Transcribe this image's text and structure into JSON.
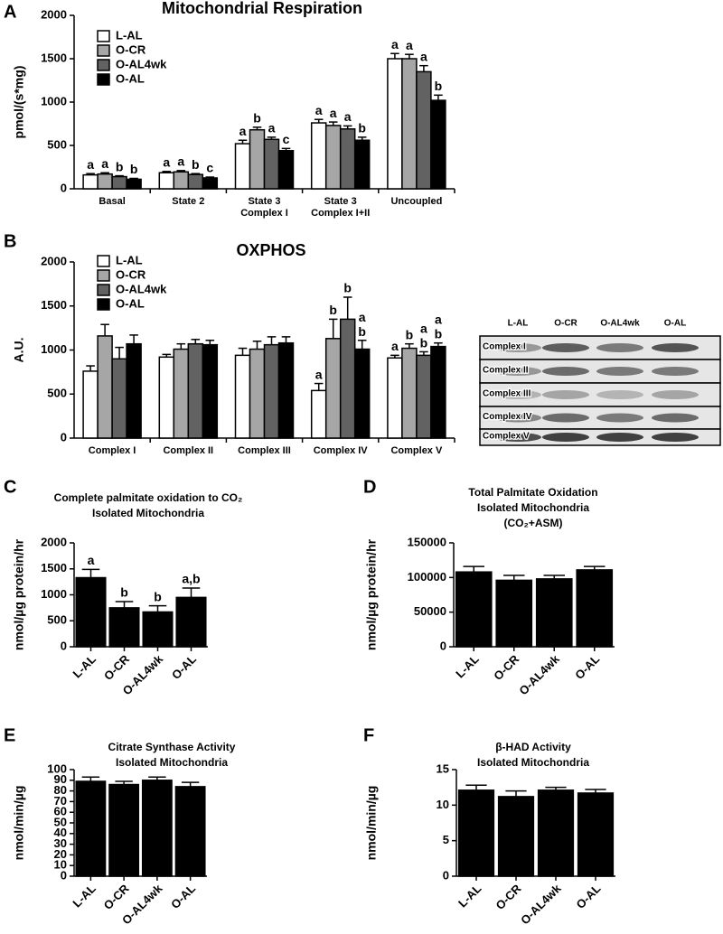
{
  "chart_data": [
    {
      "type": "bar",
      "panel": "A",
      "title": [
        "Mitochondrial Respiration"
      ],
      "ylabel": "pmol/(s*mg)",
      "categories": [
        "Basal",
        "State 2",
        "State 3\nComplex I",
        "State 3\nComplex I+II",
        "Uncoupled"
      ],
      "series": [
        {
          "name": "L-AL",
          "color": "#ffffff",
          "values": [
            160,
            185,
            520,
            760,
            1500
          ],
          "errors": [
            15,
            15,
            40,
            40,
            60
          ],
          "labels": [
            "a",
            "a",
            "a",
            "a",
            "a"
          ]
        },
        {
          "name": "O-CR",
          "color": "#a6a6a6",
          "values": [
            170,
            195,
            680,
            730,
            1500
          ],
          "errors": [
            15,
            15,
            30,
            40,
            50
          ],
          "labels": [
            "a",
            "a",
            "b",
            "a",
            "a"
          ]
        },
        {
          "name": "O-AL4wk",
          "color": "#626262",
          "values": [
            140,
            165,
            570,
            690,
            1350
          ],
          "errors": [
            10,
            10,
            25,
            35,
            70
          ],
          "labels": [
            "b",
            "b",
            "a",
            "a",
            "a"
          ]
        },
        {
          "name": "O-AL",
          "color": "#000000",
          "values": [
            110,
            125,
            440,
            560,
            1020
          ],
          "errors": [
            10,
            10,
            25,
            35,
            60
          ],
          "labels": [
            "b",
            "c",
            "c",
            "b",
            "b"
          ]
        }
      ],
      "ylim": [
        0,
        2000
      ],
      "yticks": [
        0,
        500,
        1000,
        1500,
        2000
      ],
      "legend": "upper left"
    },
    {
      "type": "bar",
      "panel": "B",
      "title": [
        "OXPHOS"
      ],
      "ylabel": "A.U.",
      "categories": [
        "Complex I",
        "Complex II",
        "Complex III",
        "Complex IV",
        "Complex V"
      ],
      "series": [
        {
          "name": "L-AL",
          "color": "#ffffff",
          "values": [
            760,
            920,
            940,
            540,
            910
          ],
          "errors": [
            60,
            30,
            80,
            80,
            30
          ],
          "labels": [
            null,
            null,
            null,
            "a",
            "a"
          ]
        },
        {
          "name": "O-CR",
          "color": "#a6a6a6",
          "values": [
            1160,
            1010,
            1010,
            1130,
            1020
          ],
          "errors": [
            130,
            60,
            90,
            220,
            50
          ],
          "labels": [
            null,
            null,
            null,
            "b",
            "b"
          ]
        },
        {
          "name": "O-AL4wk",
          "color": "#626262",
          "values": [
            900,
            1070,
            1060,
            1350,
            940
          ],
          "errors": [
            130,
            50,
            90,
            250,
            40
          ],
          "labels": [
            null,
            null,
            null,
            "b",
            "a\nb"
          ]
        },
        {
          "name": "O-AL",
          "color": "#000000",
          "values": [
            1070,
            1060,
            1080,
            1010,
            1040
          ],
          "errors": [
            100,
            50,
            70,
            100,
            40
          ],
          "labels": [
            null,
            null,
            null,
            "a\nb",
            "a\nb"
          ]
        }
      ],
      "ylim": [
        0,
        2000
      ],
      "yticks": [
        0,
        500,
        1000,
        1500,
        2000
      ],
      "legend": "upper left"
    },
    {
      "type": "bar",
      "panel": "C",
      "title": [
        "Complete palmitate oxidation to CO₂",
        "Isolated Mitochondria"
      ],
      "ylabel": "nmol/µg protein/hr",
      "categories": [
        "L-AL",
        "O-CR",
        "O-AL4wk",
        "O-AL"
      ],
      "series": [
        {
          "color": "#000000",
          "values": [
            1330,
            750,
            670,
            950
          ],
          "errors": [
            160,
            120,
            120,
            180
          ],
          "labels": [
            "a",
            "b",
            "b",
            "a,b"
          ]
        }
      ],
      "ylim": [
        0,
        2000
      ],
      "yticks": [
        0,
        500,
        1000,
        1500,
        2000
      ]
    },
    {
      "type": "bar",
      "panel": "D",
      "title": [
        "Total Palmitate Oxidation",
        "Isolated Mitochondria",
        "(CO₂+ASM)"
      ],
      "ylabel": "nmol/µg protein/hr",
      "categories": [
        "L-AL",
        "O-CR",
        "O-AL4wk",
        "O-AL"
      ],
      "series": [
        {
          "color": "#000000",
          "values": [
            108000,
            96000,
            98000,
            111000
          ],
          "errors": [
            8000,
            7000,
            5000,
            5000
          ]
        }
      ],
      "ylim": [
        0,
        150000
      ],
      "yticks": [
        0,
        50000,
        100000,
        150000
      ]
    },
    {
      "type": "bar",
      "panel": "E",
      "title": [
        "Citrate Synthase Activity",
        "Isolated Mitochondria"
      ],
      "ylabel": "nmol/min/µg",
      "categories": [
        "L-AL",
        "O-CR",
        "O-AL4wk",
        "O-AL"
      ],
      "series": [
        {
          "color": "#000000",
          "values": [
            89,
            86,
            90,
            84
          ],
          "errors": [
            4,
            3,
            3,
            4
          ]
        }
      ],
      "ylim": [
        0,
        100
      ],
      "yticks": [
        0,
        10,
        20,
        30,
        40,
        50,
        60,
        70,
        80,
        90,
        100
      ]
    },
    {
      "type": "bar",
      "panel": "F",
      "title": [
        "β-HAD Activity",
        "Isolated Mitochondria"
      ],
      "ylabel": "nmol/min/µg",
      "categories": [
        "L-AL",
        "O-CR",
        "O-AL4wk",
        "O-AL"
      ],
      "series": [
        {
          "color": "#000000",
          "values": [
            12.1,
            11.2,
            12.1,
            11.7
          ],
          "errors": [
            0.7,
            0.8,
            0.4,
            0.5
          ]
        }
      ],
      "ylim": [
        0,
        15
      ],
      "yticks": [
        0,
        5,
        10,
        15
      ]
    }
  ],
  "blot": {
    "lanes": [
      "L-AL",
      "O-CR",
      "O-AL4wk",
      "O-AL"
    ],
    "rows": [
      "Complex I",
      "Complex II",
      "Complex III",
      "Complex IV",
      "Complex V"
    ]
  }
}
